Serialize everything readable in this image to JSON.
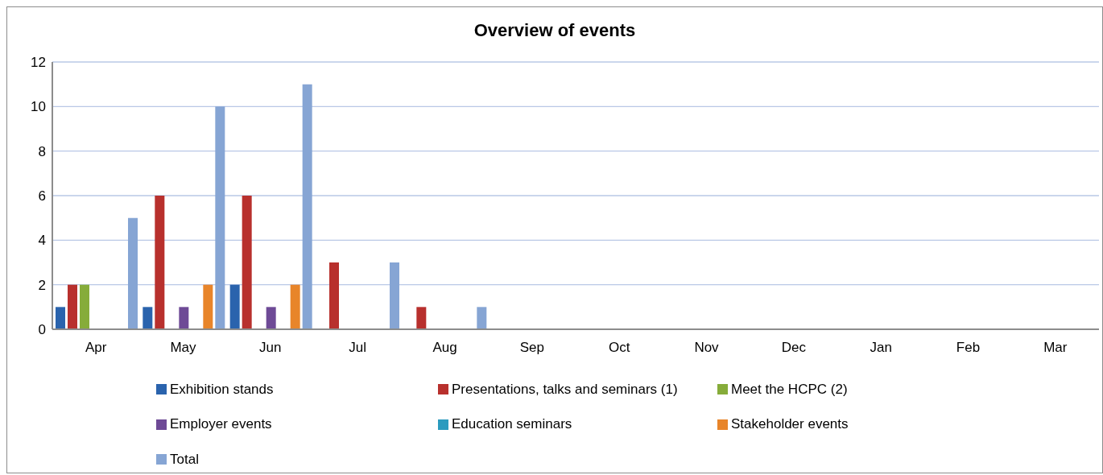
{
  "chart_data": {
    "type": "bar",
    "title": "Overview of events",
    "categories": [
      "Apr",
      "May",
      "Jun",
      "Jul",
      "Aug",
      "Sep",
      "Oct",
      "Nov",
      "Dec",
      "Jan",
      "Feb",
      "Mar"
    ],
    "series": [
      {
        "name": "Exhibition stands",
        "color": "#2a63ad",
        "values": [
          1,
          1,
          2,
          0,
          0,
          null,
          null,
          null,
          null,
          null,
          null,
          null
        ]
      },
      {
        "name": "Presentations, talks and seminars (1)",
        "color": "#b8302d",
        "values": [
          2,
          6,
          6,
          3,
          1,
          null,
          null,
          null,
          null,
          null,
          null,
          null
        ]
      },
      {
        "name": "Meet the HCPC (2)",
        "color": "#86ac3a",
        "values": [
          2,
          0,
          0,
          0,
          0,
          null,
          null,
          null,
          null,
          null,
          null,
          null
        ]
      },
      {
        "name": "Employer events",
        "color": "#6e4a96",
        "values": [
          0,
          1,
          1,
          0,
          0,
          null,
          null,
          null,
          null,
          null,
          null,
          null
        ]
      },
      {
        "name": "Education seminars",
        "color": "#2b9bbf",
        "values": [
          0,
          0,
          0,
          0,
          0,
          null,
          null,
          null,
          null,
          null,
          null,
          null
        ]
      },
      {
        "name": "Stakeholder events",
        "color": "#e8852a",
        "values": [
          0,
          2,
          2,
          0,
          0,
          null,
          null,
          null,
          null,
          null,
          null,
          null
        ]
      },
      {
        "name": "Total",
        "color": "#86a5d4",
        "values": [
          5,
          10,
          11,
          3,
          1,
          null,
          null,
          null,
          null,
          null,
          null,
          null
        ]
      }
    ],
    "ylim": [
      0,
      12
    ],
    "yticks": [
      0,
      2,
      4,
      6,
      8,
      10,
      12
    ],
    "grid": "y",
    "legend": "bottom"
  }
}
